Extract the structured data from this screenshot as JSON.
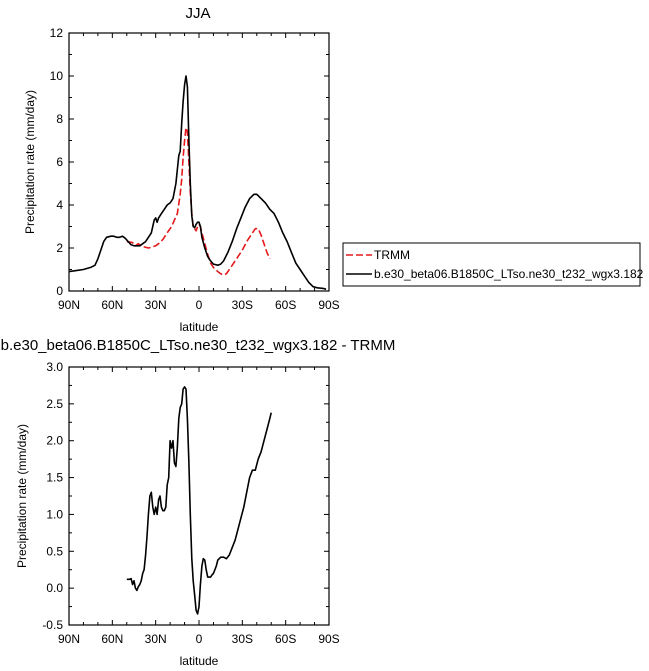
{
  "chart_data": [
    {
      "type": "line",
      "title": "JJA",
      "xlabel": "latitude",
      "ylabel": "Precipitation rate (mm/day)",
      "xlim": [
        90,
        -90
      ],
      "ylim": [
        0,
        12
      ],
      "x_ticks": [
        90,
        60,
        30,
        0,
        -30,
        -60,
        -90
      ],
      "x_tick_labels": [
        "90N",
        "60N",
        "30N",
        "0",
        "30S",
        "60S",
        "90S"
      ],
      "y_ticks": [
        0,
        2,
        4,
        6,
        8,
        10,
        12
      ],
      "y_tick_labels": [
        "0",
        "2",
        "4",
        "6",
        "8",
        "10",
        "12"
      ],
      "grid": false,
      "legend_position": "right",
      "series": [
        {
          "name": "TRMM",
          "color": "#e41a1c",
          "dash": "dashed",
          "points": [
            [
              50,
              2.3
            ],
            [
              46,
              2.25
            ],
            [
              44,
              2.1
            ],
            [
              42,
              2.2
            ],
            [
              40,
              2.1
            ],
            [
              38,
              2.05
            ],
            [
              35,
              2.0
            ],
            [
              32,
              2.05
            ],
            [
              30,
              2.1
            ],
            [
              28,
              2.2
            ],
            [
              25,
              2.4
            ],
            [
              22,
              2.7
            ],
            [
              19,
              3.0
            ],
            [
              17,
              3.3
            ],
            [
              15,
              3.6
            ],
            [
              13,
              4.5
            ],
            [
              12,
              5.2
            ],
            [
              11,
              6.2
            ],
            [
              10,
              7.0
            ],
            [
              9,
              7.6
            ],
            [
              8,
              7.4
            ],
            [
              7,
              6.0
            ],
            [
              6,
              4.6
            ],
            [
              5,
              3.6
            ],
            [
              4,
              3.0
            ],
            [
              3,
              2.9
            ],
            [
              2,
              2.8
            ],
            [
              1,
              3.0
            ],
            [
              0,
              3.1
            ],
            [
              -1,
              3.0
            ],
            [
              -2,
              2.7
            ],
            [
              -4,
              2.2
            ],
            [
              -6,
              1.7
            ],
            [
              -8,
              1.3
            ],
            [
              -10,
              1.1
            ],
            [
              -13,
              0.9
            ],
            [
              -15,
              0.8
            ],
            [
              -17,
              0.75
            ],
            [
              -19,
              0.8
            ],
            [
              -21,
              1.0
            ],
            [
              -24,
              1.3
            ],
            [
              -27,
              1.6
            ],
            [
              -30,
              1.9
            ],
            [
              -33,
              2.3
            ],
            [
              -36,
              2.6
            ],
            [
              -39,
              2.9
            ],
            [
              -41,
              2.9
            ],
            [
              -43,
              2.6
            ],
            [
              -45,
              2.2
            ],
            [
              -47,
              1.8
            ],
            [
              -49,
              1.5
            ]
          ]
        },
        {
          "name": "b.e30_beta06.B1850C_LTso.ne30_t232_wgx3.182",
          "color": "#000000",
          "dash": "solid",
          "points": [
            [
              90,
              0.9
            ],
            [
              85,
              0.95
            ],
            [
              80,
              1.0
            ],
            [
              75,
              1.1
            ],
            [
              72,
              1.2
            ],
            [
              70,
              1.5
            ],
            [
              68,
              1.9
            ],
            [
              66,
              2.3
            ],
            [
              64,
              2.5
            ],
            [
              61,
              2.55
            ],
            [
              59,
              2.55
            ],
            [
              57,
              2.5
            ],
            [
              55,
              2.5
            ],
            [
              53,
              2.55
            ],
            [
              51,
              2.45
            ],
            [
              49,
              2.3
            ],
            [
              47,
              2.15
            ],
            [
              45,
              2.1
            ],
            [
              43,
              2.1
            ],
            [
              41,
              2.1
            ],
            [
              39,
              2.2
            ],
            [
              37,
              2.3
            ],
            [
              35,
              2.5
            ],
            [
              33,
              2.7
            ],
            [
              31,
              3.3
            ],
            [
              30,
              3.4
            ],
            [
              29,
              3.2
            ],
            [
              28,
              3.4
            ],
            [
              26,
              3.6
            ],
            [
              24,
              3.8
            ],
            [
              22,
              4.0
            ],
            [
              21,
              4.05
            ],
            [
              20,
              4.1
            ],
            [
              18,
              4.3
            ],
            [
              16,
              5.0
            ],
            [
              14,
              6.3
            ],
            [
              13,
              6.5
            ],
            [
              12,
              7.8
            ],
            [
              11,
              8.8
            ],
            [
              10,
              9.6
            ],
            [
              9,
              10.0
            ],
            [
              8,
              9.5
            ],
            [
              7,
              7.0
            ],
            [
              6,
              5.0
            ],
            [
              5,
              3.5
            ],
            [
              4,
              3.0
            ],
            [
              3,
              2.95
            ],
            [
              2,
              3.1
            ],
            [
              1,
              3.2
            ],
            [
              0,
              3.2
            ],
            [
              -1,
              3.0
            ],
            [
              -2,
              2.5
            ],
            [
              -4,
              2.0
            ],
            [
              -6,
              1.6
            ],
            [
              -8,
              1.4
            ],
            [
              -10,
              1.25
            ],
            [
              -13,
              1.2
            ],
            [
              -15,
              1.25
            ],
            [
              -17,
              1.4
            ],
            [
              -20,
              1.8
            ],
            [
              -23,
              2.3
            ],
            [
              -26,
              2.9
            ],
            [
              -29,
              3.4
            ],
            [
              -32,
              3.9
            ],
            [
              -35,
              4.3
            ],
            [
              -38,
              4.5
            ],
            [
              -40,
              4.5
            ],
            [
              -43,
              4.3
            ],
            [
              -46,
              4.1
            ],
            [
              -49,
              3.8
            ],
            [
              -52,
              3.6
            ],
            [
              -55,
              3.2
            ],
            [
              -58,
              2.7
            ],
            [
              -61,
              2.3
            ],
            [
              -64,
              1.8
            ],
            [
              -67,
              1.3
            ],
            [
              -70,
              1.0
            ],
            [
              -73,
              0.7
            ],
            [
              -76,
              0.4
            ],
            [
              -79,
              0.2
            ],
            [
              -82,
              0.15
            ],
            [
              -86,
              0.12
            ],
            [
              -88,
              0.08
            ]
          ]
        }
      ]
    },
    {
      "type": "line",
      "title": "b.e30_beta06.B1850C_LTso.ne30_t232_wgx3.182 - TRMM",
      "xlabel": "latitude",
      "ylabel": "Precipitation rate (mm/day)",
      "xlim": [
        90,
        -90
      ],
      "ylim": [
        -0.5,
        3.0
      ],
      "x_ticks": [
        90,
        60,
        30,
        0,
        -30,
        -60,
        -90
      ],
      "x_tick_labels": [
        "90N",
        "60N",
        "30N",
        "0",
        "30S",
        "60S",
        "90S"
      ],
      "y_ticks": [
        -0.5,
        0,
        0.5,
        1,
        1.5,
        2,
        2.5,
        3
      ],
      "y_tick_labels": [
        "-0.5",
        "0.0",
        "0.5",
        "1.0",
        "1.5",
        "2.0",
        "2.5",
        "3.0"
      ],
      "grid": false,
      "series": [
        {
          "color": "#000000",
          "dash": "solid",
          "points": [
            [
              50,
              0.12
            ],
            [
              48,
              0.12
            ],
            [
              47,
              0.13
            ],
            [
              46,
              0.05
            ],
            [
              45,
              0.1
            ],
            [
              44,
              0.0
            ],
            [
              43,
              -0.03
            ],
            [
              42,
              0.02
            ],
            [
              41,
              0.05
            ],
            [
              40,
              0.1
            ],
            [
              39,
              0.2
            ],
            [
              38,
              0.25
            ],
            [
              37,
              0.45
            ],
            [
              36,
              0.7
            ],
            [
              35,
              1.0
            ],
            [
              34,
              1.25
            ],
            [
              33,
              1.3
            ],
            [
              32,
              1.1
            ],
            [
              31,
              1.0
            ],
            [
              30,
              1.1
            ],
            [
              29,
              1.0
            ],
            [
              28,
              1.2
            ],
            [
              27,
              1.25
            ],
            [
              26,
              1.1
            ],
            [
              25,
              1.05
            ],
            [
              24,
              1.05
            ],
            [
              23,
              1.1
            ],
            [
              22,
              1.4
            ],
            [
              21,
              1.5
            ],
            [
              20,
              2.0
            ],
            [
              19,
              1.9
            ],
            [
              18,
              2.0
            ],
            [
              17,
              1.7
            ],
            [
              16,
              1.65
            ],
            [
              15,
              1.9
            ],
            [
              14,
              2.3
            ],
            [
              13,
              2.45
            ],
            [
              12,
              2.5
            ],
            [
              11,
              2.7
            ],
            [
              10,
              2.73
            ],
            [
              9,
              2.7
            ],
            [
              8,
              2.3
            ],
            [
              7,
              1.7
            ],
            [
              6,
              1.0
            ],
            [
              5,
              0.4
            ],
            [
              4,
              0.1
            ],
            [
              3,
              -0.1
            ],
            [
              2,
              -0.3
            ],
            [
              1,
              -0.35
            ],
            [
              0,
              -0.25
            ],
            [
              -1,
              0.05
            ],
            [
              -2,
              0.3
            ],
            [
              -3,
              0.4
            ],
            [
              -4,
              0.38
            ],
            [
              -5,
              0.25
            ],
            [
              -6,
              0.15
            ],
            [
              -7,
              0.15
            ],
            [
              -8,
              0.15
            ],
            [
              -9,
              0.18
            ],
            [
              -10,
              0.2
            ],
            [
              -11,
              0.25
            ],
            [
              -12,
              0.3
            ],
            [
              -13,
              0.38
            ],
            [
              -14,
              0.4
            ],
            [
              -15,
              0.42
            ],
            [
              -17,
              0.42
            ],
            [
              -19,
              0.4
            ],
            [
              -21,
              0.45
            ],
            [
              -23,
              0.55
            ],
            [
              -25,
              0.65
            ],
            [
              -27,
              0.8
            ],
            [
              -29,
              0.95
            ],
            [
              -31,
              1.1
            ],
            [
              -33,
              1.3
            ],
            [
              -35,
              1.5
            ],
            [
              -37,
              1.6
            ],
            [
              -39,
              1.6
            ],
            [
              -41,
              1.75
            ],
            [
              -43,
              1.85
            ],
            [
              -45,
              2.0
            ],
            [
              -47,
              2.15
            ],
            [
              -49,
              2.3
            ],
            [
              -50,
              2.38
            ]
          ]
        }
      ]
    }
  ]
}
